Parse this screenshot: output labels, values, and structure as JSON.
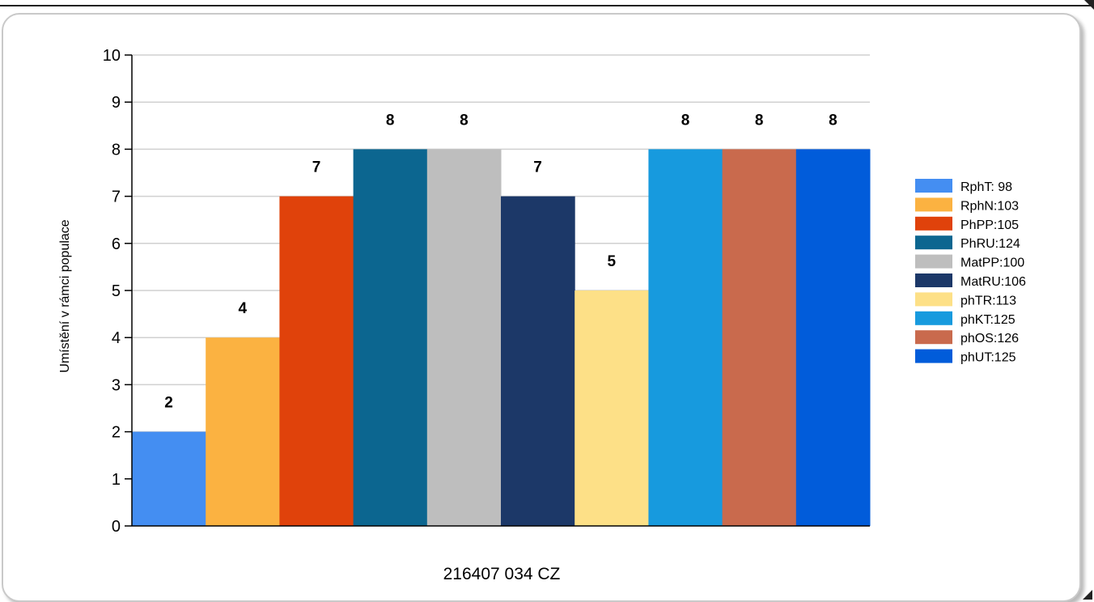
{
  "chart_data": {
    "type": "bar",
    "xlabel": "216407 034 CZ",
    "ylabel": "Umístění v rámci populace",
    "ylim": [
      0,
      10
    ],
    "yticks": [
      "0",
      "1",
      "2",
      "3",
      "4",
      "5",
      "6",
      "7",
      "8",
      "9",
      "10"
    ],
    "grid": true,
    "legend_position": "right",
    "series": [
      {
        "name": "RphT: 98",
        "value": 2,
        "color": "#448ef2"
      },
      {
        "name": "RphN:103",
        "value": 4,
        "color": "#fbb241"
      },
      {
        "name": "PhPP:105",
        "value": 7,
        "color": "#e0420b"
      },
      {
        "name": "PhRU:124",
        "value": 8,
        "color": "#0c6690"
      },
      {
        "name": "MatPP:100",
        "value": 8,
        "color": "#bebebe"
      },
      {
        "name": "MatRU:106",
        "value": 7,
        "color": "#1c3868"
      },
      {
        "name": "phTR:113",
        "value": 5,
        "color": "#fde087"
      },
      {
        "name": "phKT:125",
        "value": 8,
        "color": "#179ade"
      },
      {
        "name": "phOS:126",
        "value": 8,
        "color": "#c96a4d"
      },
      {
        "name": "phUT:125",
        "value": 8,
        "color": "#015cda"
      }
    ]
  }
}
